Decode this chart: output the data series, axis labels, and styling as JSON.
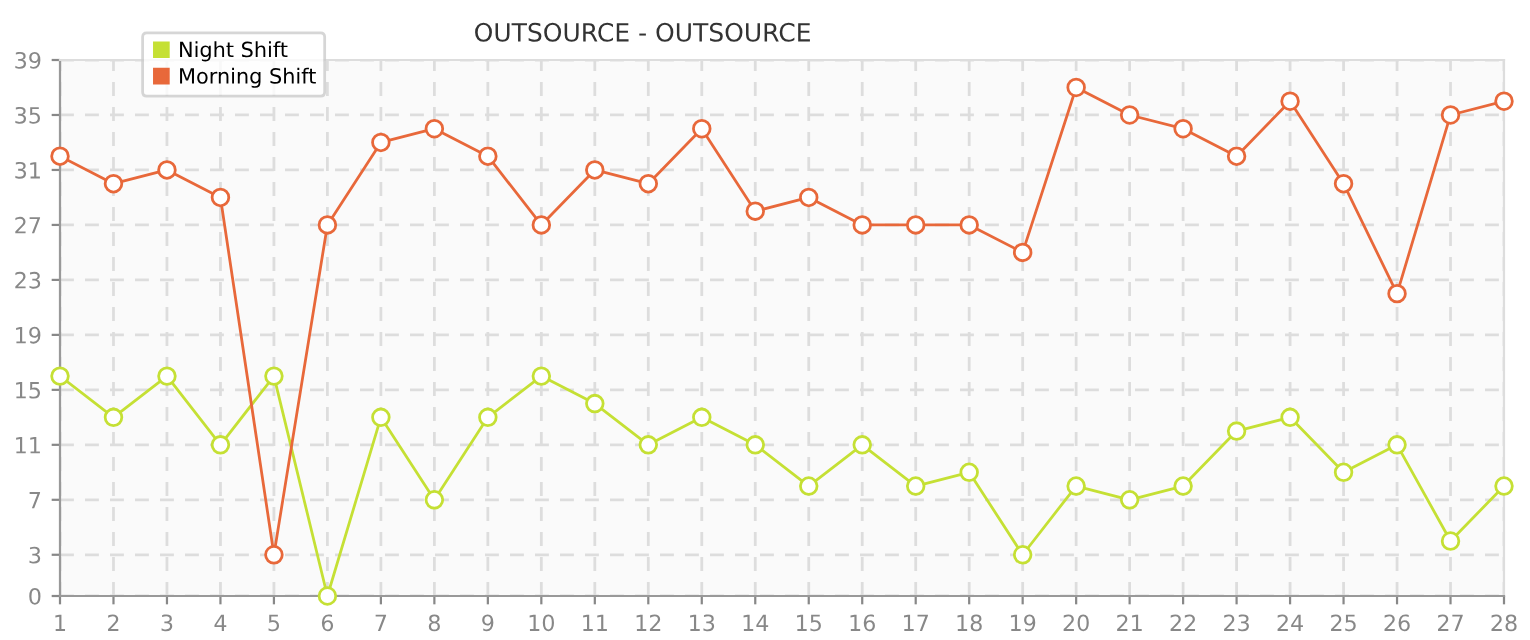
{
  "chart_data": {
    "type": "line",
    "title": "OUTSOURCE - OUTSOURCE",
    "x": [
      1,
      2,
      3,
      4,
      5,
      6,
      7,
      8,
      9,
      10,
      11,
      12,
      13,
      14,
      15,
      16,
      17,
      18,
      19,
      20,
      21,
      22,
      23,
      24,
      25,
      26,
      27,
      28
    ],
    "series": [
      {
        "name": "Night Shift",
        "color": "#c5e034",
        "values": [
          16,
          13,
          16,
          11,
          16,
          0,
          13,
          7,
          13,
          16,
          14,
          11,
          13,
          11,
          8,
          11,
          8,
          9,
          3,
          8,
          7,
          8,
          12,
          13,
          9,
          11,
          4,
          8
        ]
      },
      {
        "name": "Morning Shift",
        "color": "#e8683a",
        "values": [
          32,
          30,
          31,
          29,
          3,
          27,
          33,
          34,
          32,
          27,
          31,
          30,
          34,
          28,
          29,
          27,
          27,
          27,
          25,
          37,
          35,
          34,
          32,
          36,
          30,
          22,
          35,
          36
        ]
      }
    ],
    "xlim": [
      1,
      28
    ],
    "xticks": [
      1,
      2,
      3,
      4,
      5,
      6,
      7,
      8,
      9,
      10,
      11,
      12,
      13,
      14,
      15,
      16,
      17,
      18,
      19,
      20,
      21,
      22,
      23,
      24,
      25,
      26,
      27,
      28
    ],
    "ylim": [
      0,
      39
    ],
    "yticks": [
      0,
      3,
      7,
      11,
      15,
      19,
      23,
      27,
      31,
      35,
      39
    ],
    "grid": true,
    "legend": "top left",
    "marker": "circle",
    "line_style": "solid"
  }
}
